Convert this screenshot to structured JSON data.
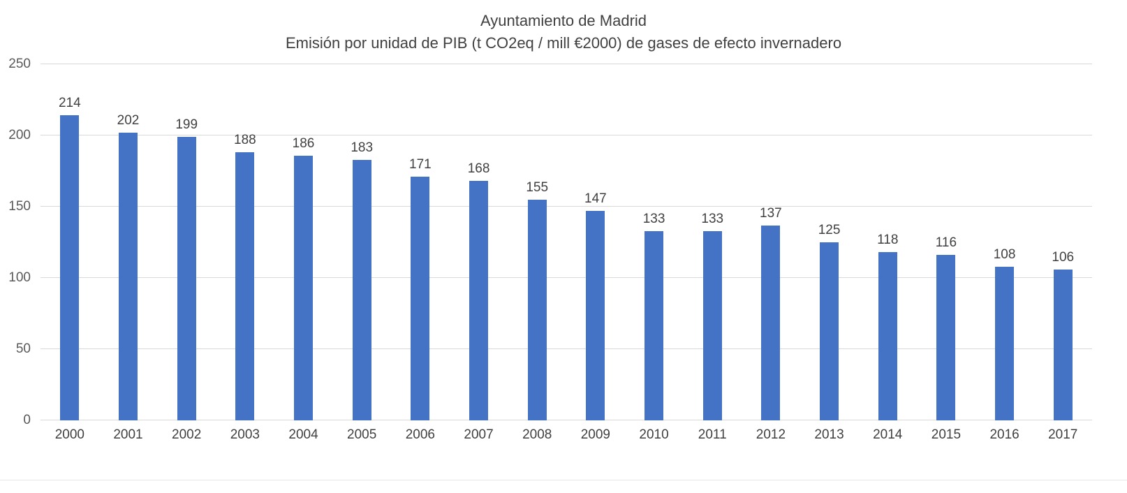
{
  "title": {
    "line1": "Ayuntamiento de Madrid",
    "line2": "Emisión por unidad de PIB (t CO2eq / mill €2000) de gases de efecto invernadero"
  },
  "chart_data": {
    "type": "bar",
    "title": "Ayuntamiento de Madrid — Emisión por unidad de PIB (t CO2eq / mill €2000) de gases de efecto invernadero",
    "categories": [
      "2000",
      "2001",
      "2002",
      "2003",
      "2004",
      "2005",
      "2006",
      "2007",
      "2008",
      "2009",
      "2010",
      "2011",
      "2012",
      "2013",
      "2014",
      "2015",
      "2016",
      "2017"
    ],
    "values": [
      214,
      202,
      199,
      188,
      186,
      183,
      171,
      168,
      155,
      147,
      133,
      133,
      137,
      125,
      118,
      116,
      108,
      106
    ],
    "xlabel": "",
    "ylabel": "",
    "ylim": [
      0,
      250
    ],
    "yticks": [
      0,
      50,
      100,
      150,
      200,
      250
    ],
    "grid": true,
    "legend": "none",
    "data_labels": true,
    "colors": {
      "bar": "#4472C4",
      "gridline": "#D9D9D9",
      "tick_text": "#595959",
      "label_text": "#404040",
      "background": "#FFFFFF"
    }
  }
}
